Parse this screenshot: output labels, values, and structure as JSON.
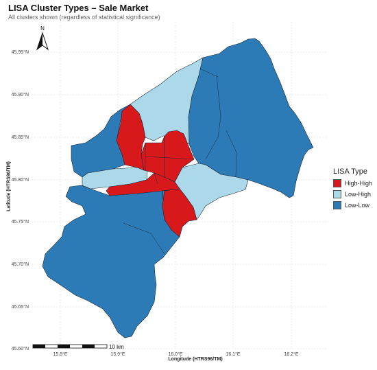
{
  "title": "LISA Cluster Types – Sale Market",
  "subtitle": "All clusters shown (regardless of statistical significance)",
  "map": {
    "xlabel": "Longitude (HTRS96/TM)",
    "ylabel": "Latitude (HTRS96/TM)",
    "x_ticks": [
      "15.8°E",
      "15.9°E",
      "16.0°E",
      "16.1°E",
      "16.2°E"
    ],
    "y_ticks": [
      "45.95°N",
      "45.90°N",
      "45.85°N",
      "45.80°N",
      "45.75°N",
      "45.70°N",
      "45.65°N",
      "45.60°N"
    ],
    "north_arrow_label": "N",
    "scale_bar_label": "10 km",
    "grid": true
  },
  "legend": {
    "title": "LISA Type",
    "items": [
      {
        "label": "High-High",
        "color": "#d7191c"
      },
      {
        "label": "Low-High",
        "color": "#abd9e9"
      },
      {
        "label": "Low-Low",
        "color": "#2c7bb6"
      }
    ]
  },
  "colors": {
    "high_high": "#d7191c",
    "low_high": "#abd9e9",
    "low_low": "#2c7bb6"
  }
}
